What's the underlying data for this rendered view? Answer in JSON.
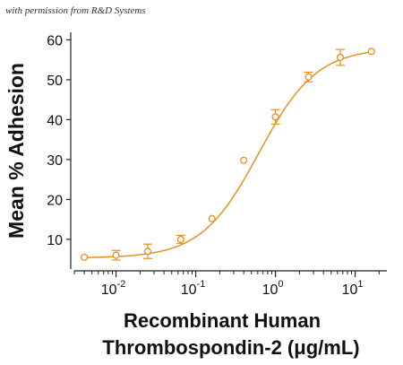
{
  "watermark": "with permission from R&D Systems",
  "chart_data": {
    "type": "scatter",
    "xlabel_line1": "Recombinant Human",
    "xlabel_line2": "Thrombospondin-2 (μg/mL)",
    "ylabel": "Mean % Adhesion",
    "x_scale": "log",
    "xlim": [
      0.003,
      25
    ],
    "ylim": [
      3,
      61
    ],
    "x_ticks": [
      {
        "value": 0.01,
        "base": "10",
        "exp": "-2"
      },
      {
        "value": 0.1,
        "base": "10",
        "exp": "-1"
      },
      {
        "value": 1,
        "base": "10",
        "exp": "0"
      },
      {
        "value": 10,
        "base": "10",
        "exp": "1"
      }
    ],
    "y_ticks": [
      10,
      20,
      30,
      40,
      50,
      60
    ],
    "grid": false,
    "color": "#E8901E",
    "series": [
      {
        "x": [
          0.004,
          0.01,
          0.025,
          0.065,
          0.16,
          0.4,
          1.0,
          2.6,
          6.5,
          16
        ],
        "y": [
          5.5,
          6.0,
          7.0,
          10.0,
          15.2,
          29.8,
          40.7,
          50.7,
          55.6,
          57.1
        ],
        "err": [
          0,
          1.2,
          1.8,
          1.0,
          0,
          0,
          1.8,
          1.2,
          2.0,
          0
        ]
      }
    ],
    "fit": {
      "bottom": 5.3,
      "top": 58.0,
      "ec50": 0.62,
      "hill": 1.2
    }
  }
}
